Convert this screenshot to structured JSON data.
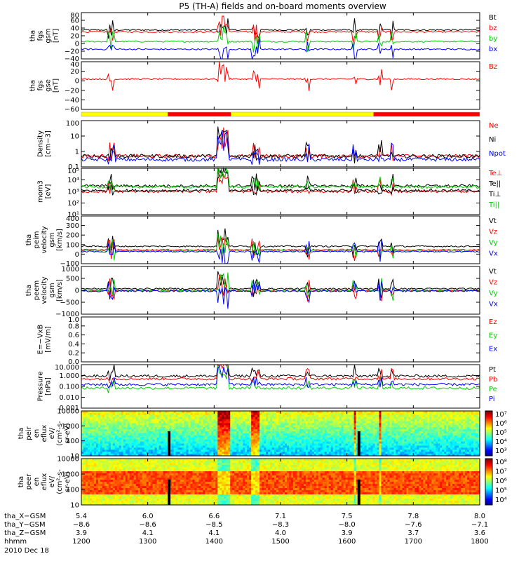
{
  "title": "P5 (TH-A) fields and on-board moments overview",
  "colors": {
    "black": "#000000",
    "red": "#ff0000",
    "green": "#00cc00",
    "blue": "#0000ff",
    "yellow": "#ffff00"
  },
  "chart_data": [
    {
      "type": "line",
      "panel": "fgs-gsm",
      "ylabel": [
        "tha",
        "fgs",
        "gsm",
        "[nT]"
      ],
      "ylim": [
        -40,
        80
      ],
      "yticks": [
        "80",
        "60",
        "40",
        "20",
        "0",
        "−20",
        "−40"
      ],
      "legend": [
        "Bt",
        "bz",
        "by",
        "bx"
      ],
      "series": [
        {
          "name": "Bt",
          "baseline": 35
        },
        {
          "name": "bz",
          "baseline": 30
        },
        {
          "name": "by",
          "baseline": 5
        },
        {
          "name": "bx",
          "baseline": -15
        }
      ]
    },
    {
      "type": "line",
      "panel": "fgs-gse",
      "ylabel": [
        "tha",
        "fgs",
        "gse",
        "[nT]"
      ],
      "ylim": [
        -70,
        40
      ],
      "yticks": [
        "40",
        "20",
        "0",
        "−20",
        "−40",
        "−60"
      ],
      "legend": [
        "Bz"
      ],
      "series": [
        {
          "name": "Bz",
          "baseline": 0
        }
      ]
    },
    {
      "type": "line",
      "panel": "density",
      "ylabel": [
        "Density",
        "[cm−3]"
      ],
      "yscale": "log",
      "ylim": [
        0.1,
        100
      ],
      "yticks": [
        "100",
        "10",
        "1",
        "0.1"
      ],
      "legend": [
        "Ne",
        "Ni",
        "Npot"
      ],
      "series": [
        {
          "name": "Ne",
          "baseline": 0.5
        },
        {
          "name": "Ni",
          "baseline": 0.5
        },
        {
          "name": "Npot",
          "baseline": 0.3
        }
      ]
    },
    {
      "type": "line",
      "panel": "temperature",
      "ylabel": [
        "mom3",
        "[eV]"
      ],
      "yscale": "log",
      "ylim": [
        10,
        100000
      ],
      "yticks": [
        "10⁵",
        "10⁴",
        "10³",
        "10²",
        "10¹"
      ],
      "legend": [
        "Te⊥",
        "Te||",
        "Ti⊥",
        "Ti||"
      ],
      "series": [
        {
          "name": "Te⊥",
          "baseline": 1000
        },
        {
          "name": "Te||",
          "baseline": 1200
        },
        {
          "name": "Ti⊥",
          "baseline": 3000
        },
        {
          "name": "Ti||",
          "baseline": 2500
        }
      ]
    },
    {
      "type": "line",
      "panel": "peim-velocity",
      "ylabel": [
        "tha",
        "peim",
        "velocity",
        "gsm",
        "[km/s]"
      ],
      "ylim": [
        -150,
        400
      ],
      "yticks": [
        "400",
        "300",
        "200",
        "100",
        "0",
        "−100"
      ],
      "legend": [
        "Vt",
        "Vz",
        "Vy",
        "Vx"
      ],
      "series": [
        {
          "name": "Vt",
          "baseline": 50
        },
        {
          "name": "Vz",
          "baseline": 10
        },
        {
          "name": "Vy",
          "baseline": 0
        },
        {
          "name": "Vx",
          "baseline": -10
        }
      ]
    },
    {
      "type": "line",
      "panel": "peem-velocity",
      "ylabel": [
        "tha",
        "peem",
        "velocity",
        "gsm",
        "[km/s]"
      ],
      "ylim": [
        -1500,
        1500
      ],
      "yticks": [
        "1000",
        "500",
        "0",
        "−500",
        "−1000"
      ],
      "legend": [
        "Vt",
        "Vz",
        "Vy",
        "Vx"
      ],
      "series": [
        {
          "name": "Vt",
          "baseline": 100
        },
        {
          "name": "Vz",
          "baseline": 0
        },
        {
          "name": "Vy",
          "baseline": 0
        },
        {
          "name": "Vx",
          "baseline": -50
        }
      ]
    },
    {
      "type": "line",
      "panel": "efield",
      "ylabel": [
        "E=−VxB",
        "[mV/m]"
      ],
      "ylim": [
        0,
        1
      ],
      "yticks": [
        "1.0",
        "0.8",
        "0.6",
        "0.4",
        "0.2",
        "0.0"
      ],
      "legend": [
        "Ez",
        "Ey",
        "Ex"
      ],
      "series": []
    },
    {
      "type": "line",
      "panel": "pressure",
      "ylabel": [
        "Pressure",
        "[nPa]"
      ],
      "yscale": "log",
      "ylim": [
        0.001,
        10
      ],
      "yticks": [
        "10.000",
        "1.000",
        "0.100",
        "0.010",
        "0.001"
      ],
      "legend": [
        "Pt",
        "Pb",
        "Pe",
        "Pi"
      ],
      "series": [
        {
          "name": "Pt",
          "baseline": 0.9
        },
        {
          "name": "Pb",
          "baseline": 0.5
        },
        {
          "name": "Pe",
          "baseline": 0.07
        },
        {
          "name": "Pi",
          "baseline": 0.15
        }
      ]
    },
    {
      "type": "heatmap",
      "panel": "peir-eflux",
      "ylabel": [
        "tha",
        "peir",
        "en",
        "eflux",
        "eV/",
        "(cm²-s-",
        "sr-eV)"
      ],
      "yscale": "log",
      "ylim": [
        10,
        10000
      ],
      "yticks": [
        "10000",
        "1000",
        "100",
        "10"
      ],
      "colorbar": {
        "ticks": [
          "10⁷",
          "10⁶",
          "10⁵",
          "10⁴",
          "10³"
        ],
        "range": [
          1000,
          10000000
        ]
      }
    },
    {
      "type": "heatmap",
      "panel": "peer-eflux",
      "ylabel": [
        "tha",
        "peer",
        "en",
        "eflux",
        "eV/",
        "(cm²-s-",
        "sr-eV)"
      ],
      "yscale": "log",
      "ylim": [
        10,
        10000
      ],
      "yticks": [
        "10000",
        "1000",
        "100",
        "10"
      ],
      "colorbar": {
        "ticks": [
          "10⁸",
          "10⁷",
          "10⁶",
          "10⁵",
          "10⁴"
        ],
        "range": [
          10000,
          100000000
        ]
      }
    }
  ],
  "status_bar": [
    {
      "from": 1200,
      "to": 1330,
      "color": "#ffff00"
    },
    {
      "from": 1330,
      "to": 1425,
      "color": "#ff0000"
    },
    {
      "from": 1425,
      "to": 1640,
      "color": "#ffff00"
    },
    {
      "from": 1640,
      "to": 1800,
      "color": "#ff0000"
    }
  ],
  "x_axis": {
    "range": [
      1200,
      1800
    ],
    "rows": [
      {
        "label": "tha_X−GSM",
        "values": [
          "5.4",
          "6.0",
          "6.6",
          "7.1",
          "7.5",
          "7.8",
          "8.0"
        ]
      },
      {
        "label": "tha_Y−GSM",
        "values": [
          "−8.6",
          "−8.6",
          "−8.5",
          "−8.3",
          "−8.0",
          "−7.6",
          "−7.1"
        ]
      },
      {
        "label": "tha_Z−GSM",
        "values": [
          "3.9",
          "4.1",
          "4.1",
          "4.0",
          "3.9",
          "3.7",
          "3.6"
        ]
      },
      {
        "label": "hhmm",
        "values": [
          "1200",
          "1300",
          "1400",
          "1500",
          "1600",
          "1700",
          "1800"
        ]
      }
    ],
    "date": "2010 Dec 18"
  }
}
